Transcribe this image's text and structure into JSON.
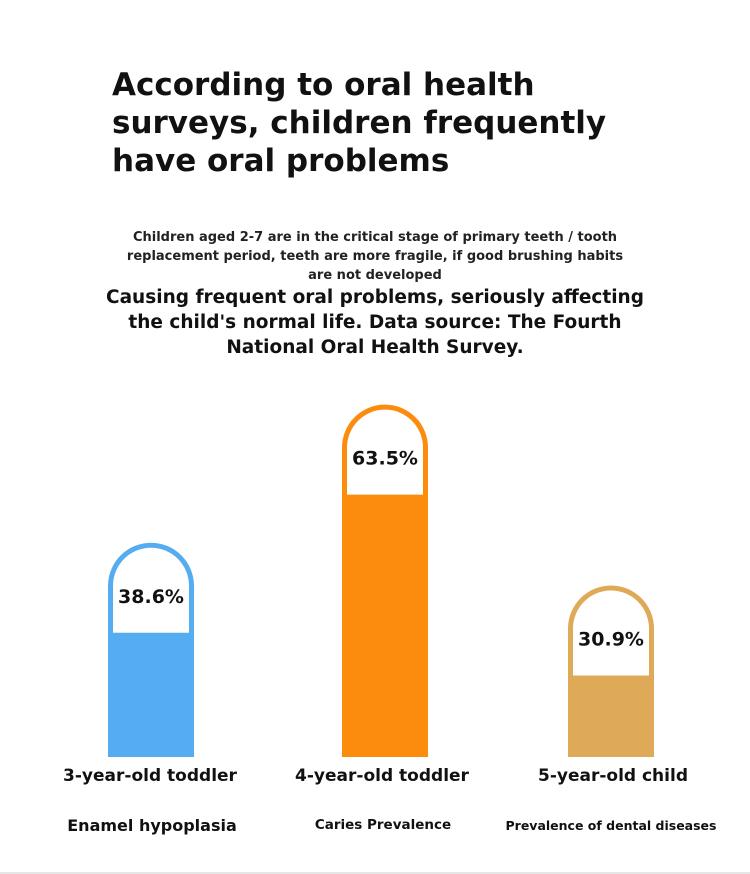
{
  "title": "According to oral health surveys, children frequently have oral problems",
  "subtitle_small": "Children aged 2-7 are in the critical stage of primary teeth / tooth replacement period, teeth are more fragile, if good brushing habits are not developed",
  "subtitle_large": "Causing frequent oral problems, seriously affecting the child's normal life. Data source: The Fourth National Oral Health Survey.",
  "colors": {
    "bar1": "#55adf1",
    "bar2": "#fb8c0e",
    "bar3": "#deaa57",
    "label_box": "#ffffff"
  },
  "chart_data": {
    "type": "bar",
    "categories": [
      "3-year-old toddler",
      "4-year-old toddler",
      "5-year-old child"
    ],
    "descriptions": [
      "Enamel hypoplasia",
      "Caries Prevalence",
      "Prevalence of dental diseases"
    ],
    "values": [
      38.6,
      63.5,
      30.9
    ],
    "value_labels": [
      "38.6%",
      "63.5%",
      "30.9%"
    ],
    "grid": false,
    "legend": "none"
  }
}
